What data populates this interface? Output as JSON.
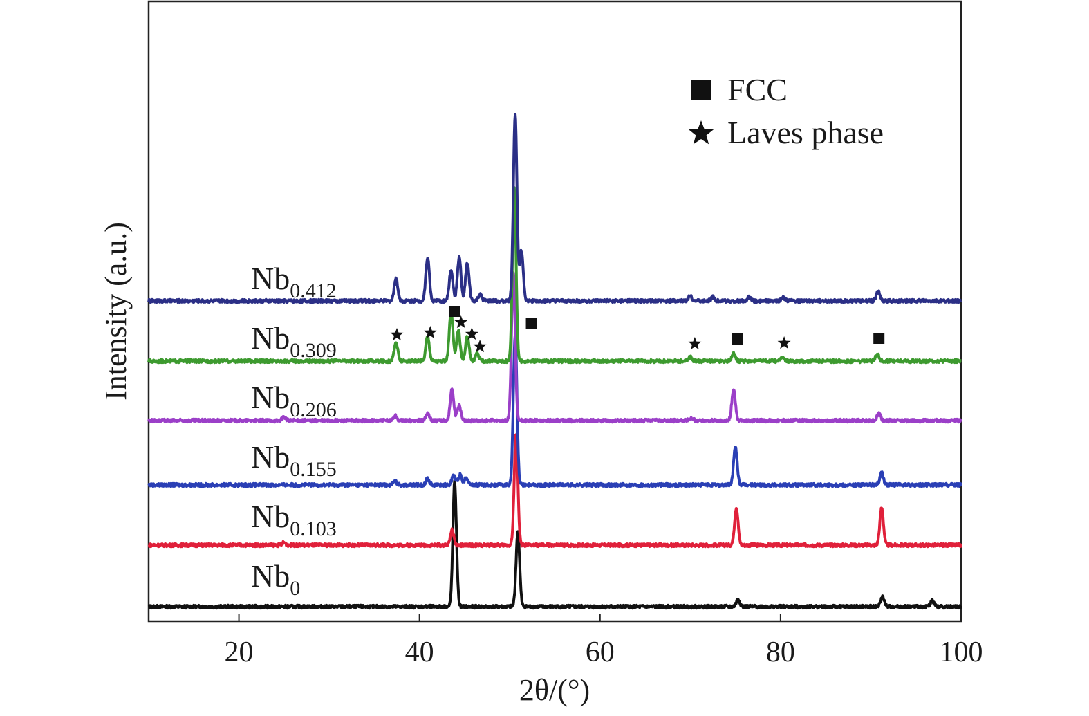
{
  "chart_data": {
    "type": "line",
    "xlabel": "2θ/(°)",
    "ylabel": "Intensity (a.u.)",
    "xlim": [
      10,
      100
    ],
    "xticks": [
      20,
      40,
      60,
      80,
      100
    ],
    "legend": {
      "placement": "top-right",
      "entries": [
        {
          "marker": "square",
          "label": "FCC"
        },
        {
          "marker": "star",
          "label": "Laves phase"
        }
      ]
    },
    "series": [
      {
        "name": "Nb0",
        "label_main": "Nb",
        "label_sub": "0",
        "color": "#111111",
        "peaks": [
          [
            43.9,
            10
          ],
          [
            50.9,
            6
          ],
          [
            75.3,
            0.6
          ],
          [
            91.3,
            0.8
          ],
          [
            96.8,
            0.5
          ]
        ]
      },
      {
        "name": "Nb0.103",
        "label_main": "Nb",
        "label_sub": "0.103",
        "color": "#e0203a",
        "peaks": [
          [
            43.6,
            1.2
          ],
          [
            50.7,
            9
          ],
          [
            75.1,
            3
          ],
          [
            91.2,
            3
          ],
          [
            25.0,
            0.2
          ]
        ]
      },
      {
        "name": "Nb0.155",
        "label_main": "Nb",
        "label_sub": "0.155",
        "color": "#2a3fb5",
        "peaks": [
          [
            37.3,
            0.3
          ],
          [
            40.9,
            0.5
          ],
          [
            43.8,
            0.8
          ],
          [
            44.5,
            0.8
          ],
          [
            45.2,
            0.6
          ],
          [
            50.6,
            12
          ],
          [
            75.0,
            3
          ],
          [
            91.2,
            1
          ]
        ]
      },
      {
        "name": "Nb0.206",
        "label_main": "Nb",
        "label_sub": "0.206",
        "color": "#9b3fc8",
        "peaks": [
          [
            25.0,
            0.3
          ],
          [
            37.3,
            0.4
          ],
          [
            40.9,
            0.6
          ],
          [
            43.6,
            2.5
          ],
          [
            44.4,
            1.2
          ],
          [
            50.4,
            12
          ],
          [
            70.1,
            0.2
          ],
          [
            74.8,
            2.5
          ],
          [
            90.9,
            0.6
          ]
        ]
      },
      {
        "name": "Nb0.309",
        "label_main": "Nb",
        "label_sub": "0.309",
        "color": "#3d9a2f",
        "peaks": [
          [
            37.4,
            1.5
          ],
          [
            40.9,
            2
          ],
          [
            43.5,
            4
          ],
          [
            44.3,
            2.5
          ],
          [
            45.3,
            2
          ],
          [
            46.4,
            0.6
          ],
          [
            50.5,
            14
          ],
          [
            70.0,
            0.3
          ],
          [
            74.8,
            0.6
          ],
          [
            80.2,
            0.3
          ],
          [
            90.7,
            0.6
          ]
        ]
      },
      {
        "name": "Nb0.412",
        "label_main": "Nb",
        "label_sub": "0.412",
        "color": "#2b2f86",
        "peaks": [
          [
            37.4,
            1.8
          ],
          [
            40.9,
            3.5
          ],
          [
            43.5,
            2.5
          ],
          [
            44.4,
            3.5
          ],
          [
            45.3,
            3
          ],
          [
            46.7,
            0.5
          ],
          [
            50.6,
            15
          ],
          [
            51.3,
            4
          ],
          [
            70.0,
            0.4
          ],
          [
            72.5,
            0.3
          ],
          [
            76.5,
            0.3
          ],
          [
            80.3,
            0.3
          ],
          [
            90.8,
            0.8
          ]
        ]
      }
    ],
    "annotations": [
      {
        "marker": "star",
        "x": 37.5
      },
      {
        "marker": "star",
        "x": 41.2
      },
      {
        "marker": "square",
        "x": 43.9
      },
      {
        "marker": "star",
        "x": 44.6
      },
      {
        "marker": "star",
        "x": 45.8
      },
      {
        "marker": "star",
        "x": 46.7
      },
      {
        "marker": "square",
        "x": 52.4
      },
      {
        "marker": "star",
        "x": 70.5
      },
      {
        "marker": "square",
        "x": 75.2
      },
      {
        "marker": "star",
        "x": 80.4
      },
      {
        "marker": "square",
        "x": 90.9
      }
    ]
  }
}
